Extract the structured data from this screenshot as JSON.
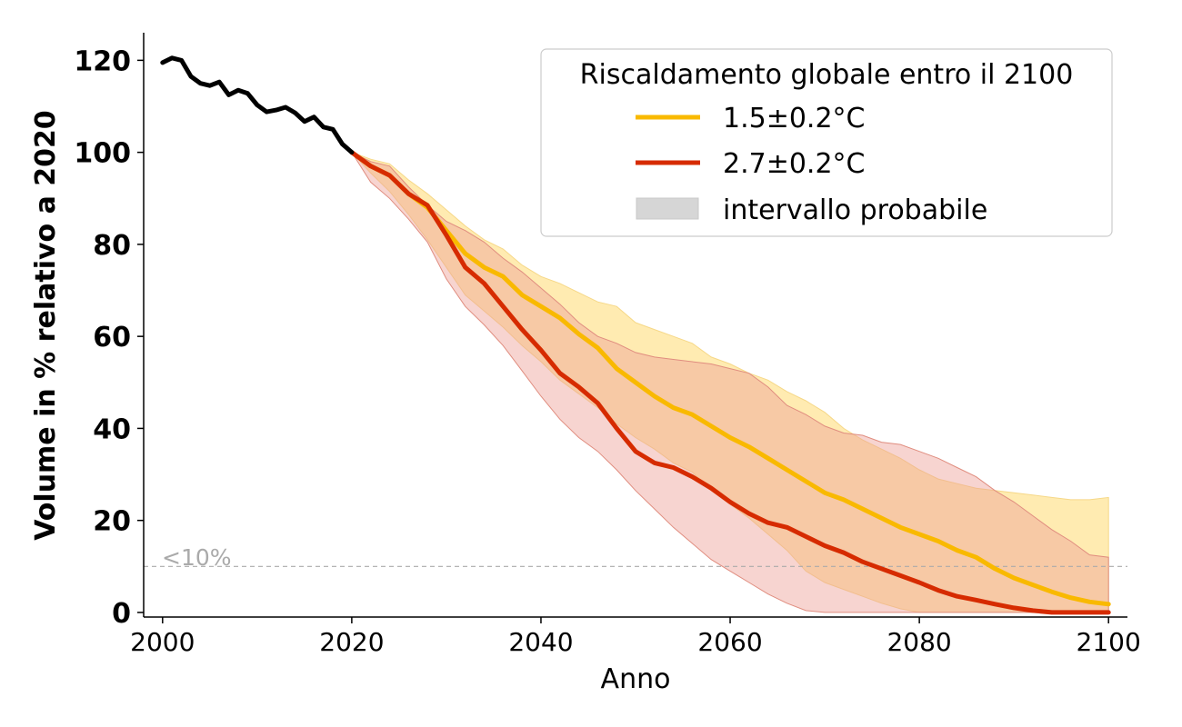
{
  "chart_data": {
    "type": "line",
    "xlabel": "Anno",
    "ylabel": "Volume in % relativo a 2020",
    "xlim": [
      1998,
      2102
    ],
    "ylim": [
      -1,
      126
    ],
    "x_ticks": [
      2000,
      2020,
      2040,
      2060,
      2080,
      2100
    ],
    "y_ticks": [
      0,
      20,
      40,
      60,
      80,
      100,
      120
    ],
    "grid": false,
    "legend": {
      "title": "Riscaldamento globale entro il 2100",
      "placement": "top-right",
      "entries": [
        "1.5±0.2°C",
        "2.7±0.2°C",
        "intervallo probabile"
      ]
    },
    "reference_line": {
      "y": 10,
      "label": "<10%",
      "color": "#aaaaaa"
    },
    "colors": {
      "historical": "#000000",
      "low": "#f9b900",
      "high": "#d62b00",
      "low_band": "#ffe9a8",
      "high_band": "#eea096",
      "legend_band": "#d6d6d6"
    },
    "series": [
      {
        "key": "historical",
        "x": [
          2000,
          2001,
          2002,
          2003,
          2004,
          2005,
          2006,
          2007,
          2008,
          2009,
          2010,
          2011,
          2012,
          2013,
          2014,
          2015,
          2016,
          2017,
          2018,
          2019,
          2020
        ],
        "values": [
          119.5,
          120.5,
          120,
          116.5,
          115,
          114.5,
          115.3,
          112.5,
          113.5,
          112.8,
          110.3,
          108.8,
          109.2,
          109.8,
          108.6,
          106.7,
          107.7,
          105.5,
          105,
          101.8,
          100
        ]
      },
      {
        "key": "low",
        "name": "1.5±0.2°C",
        "x": [
          2020,
          2022,
          2024,
          2026,
          2028,
          2030,
          2032,
          2034,
          2036,
          2038,
          2040,
          2042,
          2044,
          2046,
          2048,
          2050,
          2052,
          2054,
          2056,
          2058,
          2060,
          2062,
          2064,
          2066,
          2068,
          2070,
          2072,
          2074,
          2076,
          2078,
          2080,
          2082,
          2084,
          2086,
          2088,
          2090,
          2092,
          2094,
          2096,
          2098,
          2100
        ],
        "values": [
          100,
          97,
          95,
          91,
          88,
          83,
          78,
          75,
          73,
          69,
          66.5,
          64,
          60.5,
          57.5,
          53,
          50,
          47,
          44.5,
          43,
          40.5,
          38,
          36,
          33.5,
          31,
          28.5,
          26,
          24.5,
          22.5,
          20.5,
          18.5,
          17,
          15.5,
          13.5,
          12,
          9.5,
          7.5,
          6,
          4.5,
          3.2,
          2.3,
          1.8
        ],
        "band_lower": [
          100,
          95.5,
          91.5,
          86.5,
          81,
          75,
          69,
          65.5,
          62,
          58,
          54.5,
          50.5,
          47.5,
          44.5,
          41,
          38,
          35.5,
          32.5,
          30.5,
          26.5,
          23.5,
          20.5,
          17,
          13.5,
          9,
          6.5,
          5,
          3.5,
          2,
          0.8,
          0,
          0,
          0,
          0,
          0,
          0,
          0,
          0,
          0,
          0,
          0
        ],
        "band_upper": [
          100,
          98.5,
          97.5,
          94,
          91,
          87.5,
          84,
          81,
          79,
          75.5,
          73,
          71.5,
          69.5,
          67.5,
          66.5,
          63,
          61.5,
          60,
          58.5,
          55.5,
          54,
          52,
          50.5,
          48,
          46,
          43.5,
          40,
          37.5,
          35.5,
          33.5,
          31,
          29,
          28,
          27,
          26.5,
          26,
          25.5,
          25,
          24.5,
          24.5,
          25
        ]
      },
      {
        "key": "high",
        "name": "2.7±0.2°C",
        "x": [
          2020,
          2022,
          2024,
          2026,
          2028,
          2030,
          2032,
          2034,
          2036,
          2038,
          2040,
          2042,
          2044,
          2046,
          2048,
          2050,
          2052,
          2054,
          2056,
          2058,
          2060,
          2062,
          2064,
          2066,
          2068,
          2070,
          2072,
          2074,
          2076,
          2078,
          2080,
          2082,
          2084,
          2086,
          2088,
          2090,
          2092,
          2094,
          2096,
          2098,
          2100
        ],
        "values": [
          100,
          97,
          95,
          91,
          88.5,
          82,
          75,
          71.5,
          66.5,
          61.5,
          57,
          52,
          49,
          45.5,
          40,
          35,
          32.5,
          31.5,
          29.5,
          27,
          24,
          21.5,
          19.5,
          18.5,
          16.5,
          14.5,
          13,
          11,
          9.5,
          8,
          6.5,
          4.8,
          3.5,
          2.7,
          1.8,
          1,
          0.4,
          0,
          0,
          0,
          0
        ],
        "band_lower": [
          100,
          93.5,
          90,
          85.5,
          80.5,
          72.5,
          66.5,
          62.5,
          58,
          52.5,
          47,
          42,
          38,
          35,
          31,
          26.5,
          22.5,
          18.5,
          15,
          11.5,
          9,
          6.5,
          4,
          2,
          0.4,
          0,
          0,
          0,
          0,
          0,
          0,
          0,
          0,
          0,
          0,
          0,
          0,
          0,
          0,
          0,
          0
        ],
        "band_upper": [
          100,
          98,
          97,
          92.5,
          88.5,
          85,
          83,
          80.5,
          77,
          74,
          70.5,
          67,
          63,
          60,
          58.5,
          56.5,
          55.5,
          55,
          54.5,
          54,
          53,
          52,
          49,
          45,
          43,
          40.5,
          39,
          38.5,
          37,
          36.5,
          35,
          33.5,
          31.5,
          29.5,
          26.5,
          24,
          21,
          18,
          15.5,
          12.5,
          12
        ]
      }
    ]
  }
}
